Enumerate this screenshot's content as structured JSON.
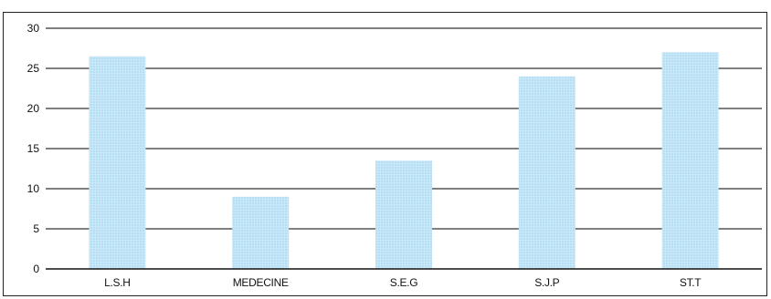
{
  "chart_data": {
    "type": "bar",
    "categories": [
      "L.S.H",
      "MEDECINE",
      "S.E.G",
      "S.J.P",
      "ST.T"
    ],
    "values": [
      26.5,
      9,
      13.5,
      24,
      27
    ],
    "ylim": [
      0,
      30
    ],
    "yticks": [
      "0",
      "5",
      "10",
      "15",
      "20",
      "25",
      "30"
    ],
    "ytick_values": [
      0,
      5,
      10,
      15,
      20,
      25,
      30
    ],
    "grid": true,
    "legend": "none",
    "colors": {
      "bar_fill": "#bfe3f7",
      "bar_dot": "#9fd2ef",
      "grid": "#555555",
      "axis": "#111111"
    }
  }
}
